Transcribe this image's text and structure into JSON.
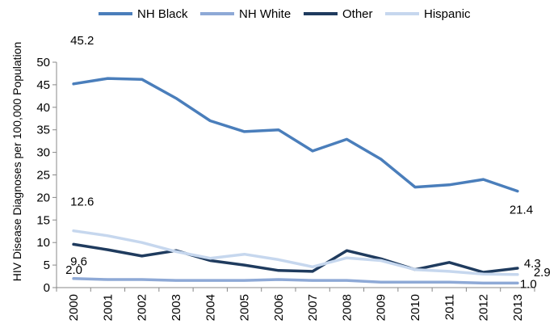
{
  "chart_data": {
    "type": "line",
    "title": "",
    "xlabel": "",
    "ylabel": "HIV Disease Diagnoses per 100,000 Population",
    "ylim": [
      0,
      50
    ],
    "yticks": [
      0,
      5,
      10,
      15,
      20,
      25,
      30,
      35,
      40,
      45,
      50
    ],
    "x": [
      "2000",
      "2001",
      "2002",
      "2003",
      "2004",
      "2005",
      "2006",
      "2007",
      "2008",
      "2009",
      "2010",
      "2011",
      "2012",
      "2013"
    ],
    "grid": false,
    "legend": "top",
    "series": [
      {
        "name": "NH Black",
        "color": "#4a7ebb",
        "values": [
          45.2,
          46.4,
          46.2,
          42.0,
          37.0,
          34.6,
          35.0,
          30.3,
          32.9,
          28.5,
          22.3,
          22.8,
          24.0,
          21.4
        ]
      },
      {
        "name": "NH White",
        "color": "#8ea9d6",
        "values": [
          2.0,
          1.8,
          1.8,
          1.6,
          1.6,
          1.6,
          1.8,
          1.6,
          1.6,
          1.2,
          1.2,
          1.2,
          1.0,
          1.0
        ]
      },
      {
        "name": "Other",
        "color": "#1f3b5e",
        "values": [
          9.6,
          8.4,
          7.0,
          8.2,
          6.0,
          5.0,
          3.8,
          3.6,
          8.2,
          6.4,
          4.0,
          5.6,
          3.4,
          4.3
        ]
      },
      {
        "name": "Hispanic",
        "color": "#c6d7ee",
        "values": [
          12.6,
          11.5,
          10.0,
          8.0,
          6.5,
          7.4,
          6.2,
          4.6,
          6.6,
          6.0,
          4.0,
          3.6,
          3.0,
          2.9
        ]
      }
    ],
    "annotations": [
      {
        "series": 0,
        "index": 0,
        "text": "45.2"
      },
      {
        "series": 0,
        "index": 13,
        "text": "21.4"
      },
      {
        "series": 3,
        "index": 0,
        "text": "12.6"
      },
      {
        "series": 2,
        "index": 0,
        "text": "9.6"
      },
      {
        "series": 1,
        "index": 0,
        "text": "2.0"
      },
      {
        "series": 2,
        "index": 13,
        "text": "4.3"
      },
      {
        "series": 3,
        "index": 13,
        "text": "2.9"
      },
      {
        "series": 1,
        "index": 13,
        "text": "1.0"
      }
    ]
  }
}
